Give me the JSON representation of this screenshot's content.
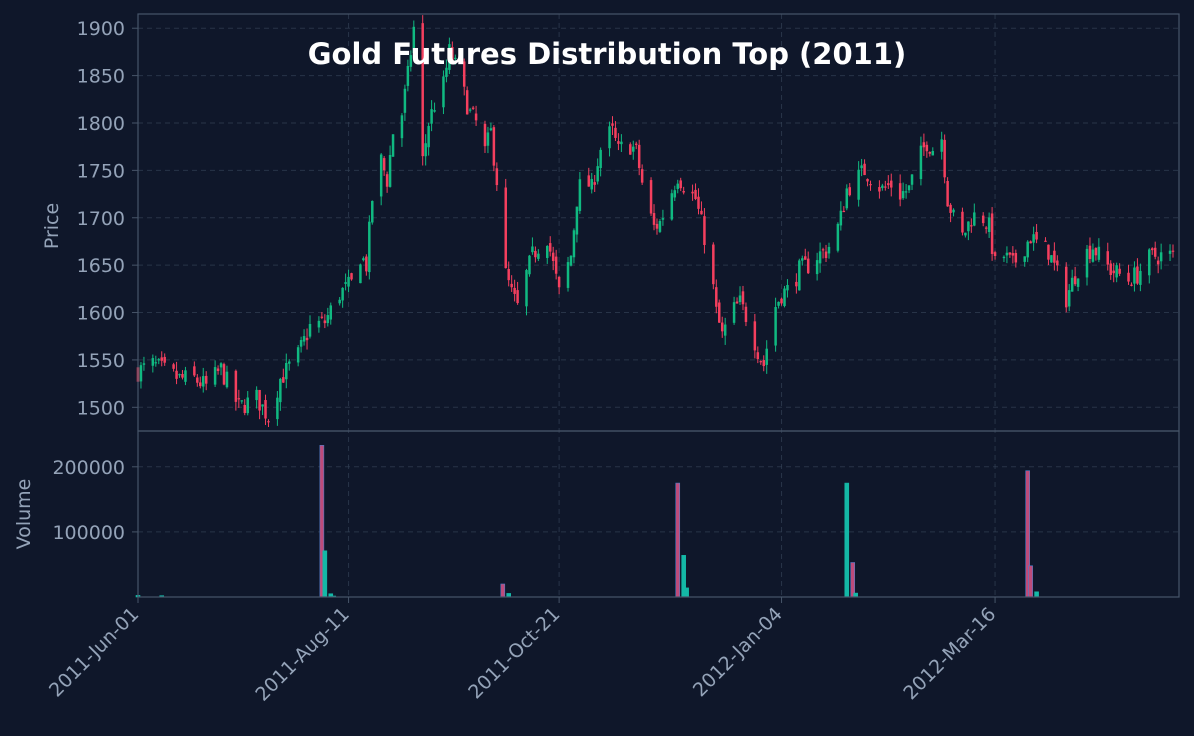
{
  "chart_data": {
    "type": "candlestick",
    "title": "Gold Futures Distribution Top (2011)",
    "price_panel": {
      "ylabel": "Price",
      "ylim": [
        1475,
        1915
      ],
      "yticks": [
        1500,
        1550,
        1600,
        1650,
        1700,
        1750,
        1800,
        1850,
        1900
      ]
    },
    "volume_panel": {
      "ylabel": "Volume",
      "ylim": [
        0,
        255000
      ],
      "yticks": [
        100000,
        200000
      ],
      "ytick_labels": [
        "100000",
        "200000"
      ]
    },
    "x_axis": {
      "start_date": "2011-06-01",
      "end_date": "2012-05-15",
      "ticks": [
        "2011-Jun-01",
        "2011-Aug-11",
        "2011-Oct-21",
        "2012-Jan-04",
        "2012-Mar-16"
      ],
      "tick_dates": [
        "2011-06-01",
        "2011-08-11",
        "2011-10-21",
        "2012-01-04",
        "2012-03-16"
      ]
    },
    "grid": true,
    "close_path": [
      [
        "2011-06-01",
        1538
      ],
      [
        "2011-06-06",
        1545
      ],
      [
        "2011-06-10",
        1538
      ],
      [
        "2011-06-15",
        1530
      ],
      [
        "2011-06-20",
        1530
      ],
      [
        "2011-06-24",
        1522
      ],
      [
        "2011-06-29",
        1540
      ],
      [
        "2011-07-05",
        1500
      ],
      [
        "2011-07-11",
        1510
      ],
      [
        "2011-07-15",
        1490
      ],
      [
        "2011-07-19",
        1530
      ],
      [
        "2011-07-25",
        1555
      ],
      [
        "2011-07-29",
        1585
      ],
      [
        "2011-08-03",
        1590
      ],
      [
        "2011-08-08",
        1620
      ],
      [
        "2011-08-12",
        1630
      ],
      [
        "2011-08-15",
        1660
      ],
      [
        "2011-08-17",
        1650
      ],
      [
        "2011-08-19",
        1720
      ],
      [
        "2011-08-22",
        1760
      ],
      [
        "2011-08-24",
        1740
      ],
      [
        "2011-08-26",
        1790
      ],
      [
        "2011-08-29",
        1810
      ],
      [
        "2011-08-31",
        1850
      ],
      [
        "2011-09-02",
        1900
      ],
      [
        "2011-09-05",
        1760
      ],
      [
        "2011-09-07",
        1800
      ],
      [
        "2011-09-09",
        1820
      ],
      [
        "2011-09-12",
        1840
      ],
      [
        "2011-09-14",
        1875
      ],
      [
        "2011-09-16",
        1860
      ],
      [
        "2011-09-19",
        1830
      ],
      [
        "2011-09-21",
        1810
      ],
      [
        "2011-09-23",
        1800
      ],
      [
        "2011-09-26",
        1770
      ],
      [
        "2011-09-28",
        1790
      ],
      [
        "2011-09-30",
        1740
      ],
      [
        "2011-10-03",
        1640
      ],
      [
        "2011-10-05",
        1620
      ],
      [
        "2011-10-07",
        1605
      ],
      [
        "2011-10-10",
        1640
      ],
      [
        "2011-10-12",
        1660
      ],
      [
        "2011-10-14",
        1670
      ],
      [
        "2011-10-17",
        1680
      ],
      [
        "2011-10-19",
        1650
      ],
      [
        "2011-10-21",
        1620
      ],
      [
        "2011-10-25",
        1660
      ],
      [
        "2011-10-27",
        1720
      ],
      [
        "2011-10-29",
        1745
      ],
      [
        "2011-11-01",
        1730
      ],
      [
        "2011-11-03",
        1760
      ],
      [
        "2011-11-05",
        1785
      ],
      [
        "2011-11-08",
        1790
      ],
      [
        "2011-11-10",
        1770
      ],
      [
        "2011-11-13",
        1780
      ],
      [
        "2011-11-16",
        1770
      ],
      [
        "2011-11-19",
        1720
      ],
      [
        "2011-11-22",
        1690
      ],
      [
        "2011-11-24",
        1695
      ],
      [
        "2011-11-27",
        1720
      ],
      [
        "2011-11-30",
        1745
      ],
      [
        "2011-12-03",
        1730
      ],
      [
        "2011-12-06",
        1720
      ],
      [
        "2011-12-09",
        1680
      ],
      [
        "2011-12-11",
        1650
      ],
      [
        "2011-12-13",
        1600
      ],
      [
        "2011-12-15",
        1575
      ],
      [
        "2011-12-18",
        1600
      ],
      [
        "2011-12-21",
        1610
      ],
      [
        "2011-12-24",
        1590
      ],
      [
        "2011-12-27",
        1560
      ],
      [
        "2011-12-29",
        1545
      ],
      [
        "2012-01-01",
        1600
      ],
      [
        "2012-01-04",
        1620
      ],
      [
        "2012-01-07",
        1625
      ],
      [
        "2012-01-10",
        1645
      ],
      [
        "2012-01-13",
        1650
      ],
      [
        "2012-01-16",
        1660
      ],
      [
        "2012-01-19",
        1665
      ],
      [
        "2012-01-22",
        1680
      ],
      [
        "2012-01-24",
        1700
      ],
      [
        "2012-01-26",
        1730
      ],
      [
        "2012-01-29",
        1740
      ],
      [
        "2012-02-01",
        1750
      ],
      [
        "2012-02-04",
        1740
      ],
      [
        "2012-02-07",
        1730
      ],
      [
        "2012-02-10",
        1735
      ],
      [
        "2012-02-13",
        1725
      ],
      [
        "2012-02-16",
        1730
      ],
      [
        "2012-02-19",
        1760
      ],
      [
        "2012-02-22",
        1780
      ],
      [
        "2012-02-25",
        1770
      ],
      [
        "2012-02-27",
        1785
      ],
      [
        "2012-02-29",
        1720
      ],
      [
        "2012-03-02",
        1700
      ],
      [
        "2012-03-05",
        1680
      ],
      [
        "2012-03-08",
        1700
      ],
      [
        "2012-03-11",
        1705
      ],
      [
        "2012-03-14",
        1690
      ],
      [
        "2012-03-16",
        1650
      ],
      [
        "2012-03-19",
        1660
      ],
      [
        "2012-03-22",
        1650
      ],
      [
        "2012-03-25",
        1665
      ],
      [
        "2012-03-28",
        1680
      ],
      [
        "2012-03-31",
        1670
      ],
      [
        "2012-04-03",
        1665
      ],
      [
        "2012-04-06",
        1640
      ],
      [
        "2012-04-09",
        1615
      ],
      [
        "2012-04-12",
        1640
      ],
      [
        "2012-04-15",
        1660
      ],
      [
        "2012-04-18",
        1670
      ],
      [
        "2012-04-21",
        1655
      ],
      [
        "2012-04-24",
        1645
      ],
      [
        "2012-04-27",
        1640
      ],
      [
        "2012-04-30",
        1635
      ],
      [
        "2012-05-03",
        1640
      ],
      [
        "2012-05-06",
        1655
      ],
      [
        "2012-05-09",
        1660
      ],
      [
        "2012-05-12",
        1660
      ],
      [
        "2012-05-15",
        1660
      ]
    ],
    "volume_spikes": [
      {
        "date": "2011-06-01",
        "value": 2500,
        "direction": "up"
      },
      {
        "date": "2011-06-09",
        "value": 2000,
        "direction": "up"
      },
      {
        "date": "2011-08-02",
        "value": 233000,
        "direction": "down"
      },
      {
        "date": "2011-08-03",
        "value": 71000,
        "direction": "up"
      },
      {
        "date": "2011-08-05",
        "value": 5000,
        "direction": "up"
      },
      {
        "date": "2011-08-06",
        "value": 1500,
        "direction": "up"
      },
      {
        "date": "2011-10-02",
        "value": 20000,
        "direction": "down"
      },
      {
        "date": "2011-10-04",
        "value": 5500,
        "direction": "up"
      },
      {
        "date": "2011-11-30",
        "value": 175000,
        "direction": "down"
      },
      {
        "date": "2011-12-02",
        "value": 64000,
        "direction": "up"
      },
      {
        "date": "2011-12-03",
        "value": 14000,
        "direction": "up"
      },
      {
        "date": "2012-01-26",
        "value": 175000,
        "direction": "up"
      },
      {
        "date": "2012-01-28",
        "value": 53000,
        "direction": "down"
      },
      {
        "date": "2012-01-29",
        "value": 6000,
        "direction": "up"
      },
      {
        "date": "2012-03-27",
        "value": 194000,
        "direction": "down"
      },
      {
        "date": "2012-03-28",
        "value": 48000,
        "direction": "down"
      },
      {
        "date": "2012-03-30",
        "value": 8000,
        "direction": "up"
      }
    ],
    "colors": {
      "background": "#0f172a",
      "panel": "#0f172a",
      "up": "#10b981",
      "down": "#f43f5e",
      "volume_up": "#14b8a6",
      "volume_down": "#be4b7a",
      "grid": "#334155",
      "spine": "#475569",
      "text": "#94a3b8",
      "title": "#ffffff"
    }
  }
}
